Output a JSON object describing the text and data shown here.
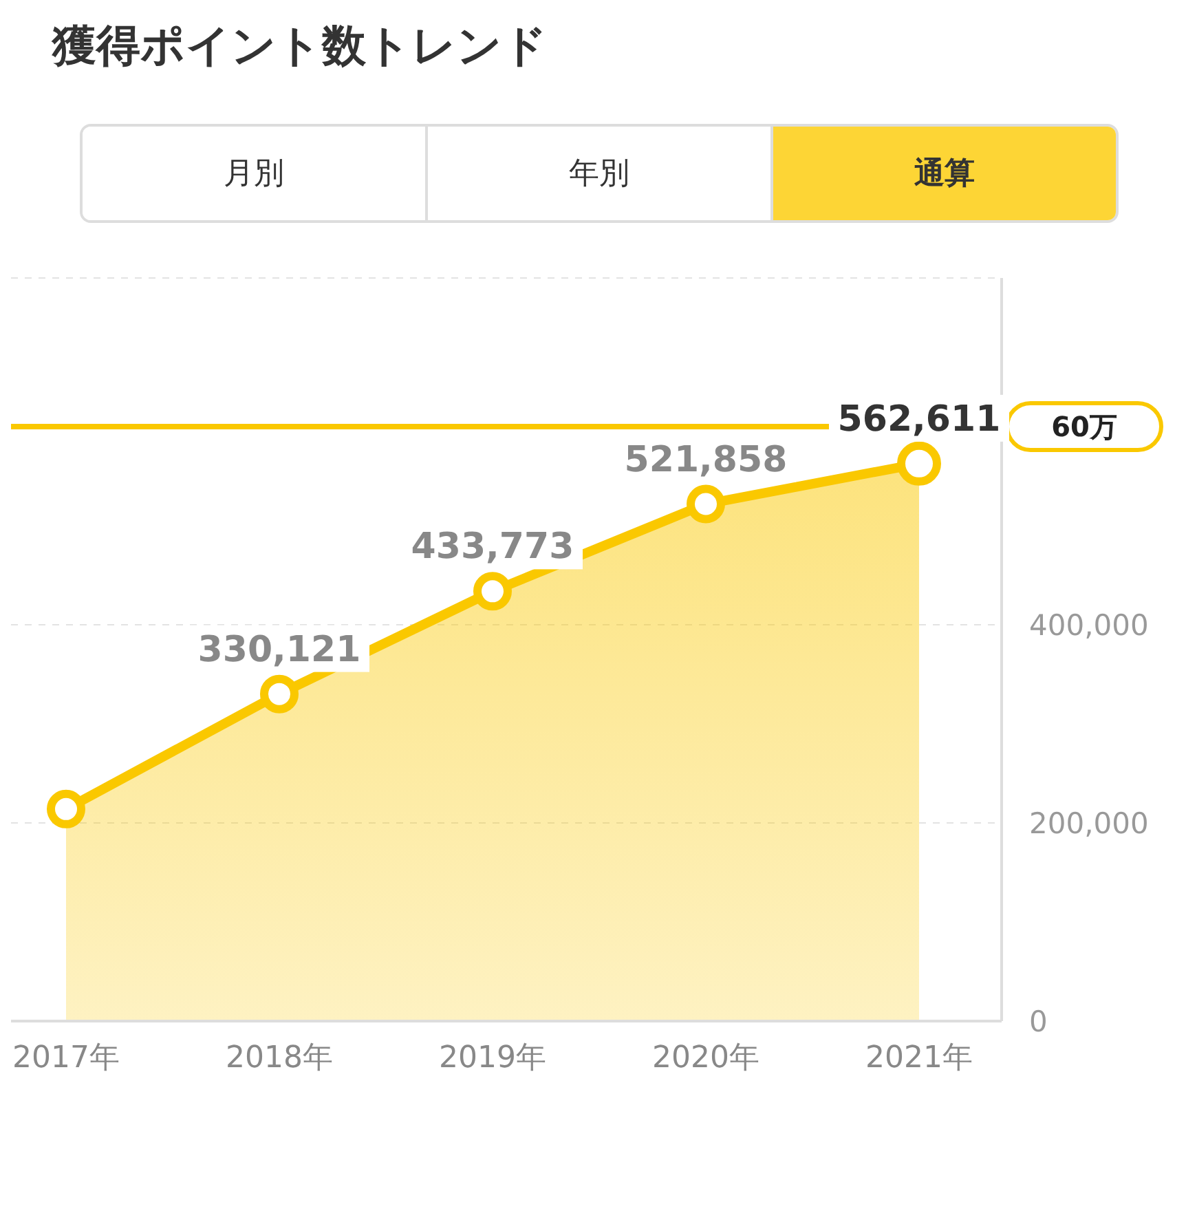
{
  "chart_data": {
    "type": "area",
    "title": "獲得ポイント数トレンド",
    "annotations": [
      "月別",
      "年別",
      "通算"
    ],
    "categories": [
      "2017年",
      "2018年",
      "2019年",
      "2020年",
      "2021年"
    ],
    "series": [
      {
        "color": "#fac800",
        "values": [
          214000,
          330121,
          433773,
          521858,
          562611
        ],
        "value_labels": [
          null,
          "330,121",
          "433,773",
          "521,858",
          "562,611"
        ]
      }
    ],
    "ylim": [
      0,
      750000
    ],
    "yticks": [
      0,
      {
        "value": 200000,
        "label": "200,000"
      },
      {
        "value": 400000,
        "label": "400,000"
      }
    ],
    "ref_lines": [
      {
        "axis": "y",
        "value": 600000,
        "label": "60万",
        "color": "#fac800"
      }
    ],
    "grid": "y",
    "marker": "circle",
    "line_style": "solid"
  }
}
